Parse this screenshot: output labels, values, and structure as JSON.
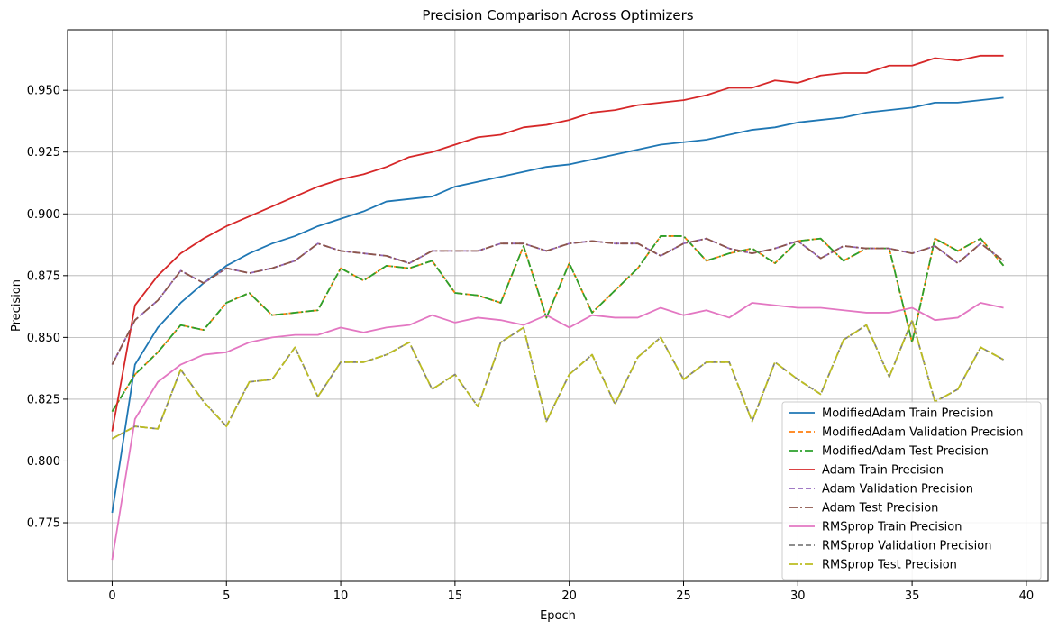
{
  "chart_data": {
    "type": "line",
    "title": "Precision Comparison Across Optimizers",
    "xlabel": "Epoch",
    "ylabel": "Precision",
    "xlim": [
      -1.95,
      40.95
    ],
    "ylim": [
      0.7513,
      0.9745
    ],
    "x_ticks": [
      0,
      5,
      10,
      15,
      20,
      25,
      30,
      35,
      40
    ],
    "x_tick_labels": [
      "0",
      "5",
      "10",
      "15",
      "20",
      "25",
      "30",
      "35",
      "40"
    ],
    "y_ticks": [
      0.775,
      0.8,
      0.825,
      0.85,
      0.875,
      0.9,
      0.925,
      0.95
    ],
    "y_tick_labels": [
      "0.775",
      "0.800",
      "0.825",
      "0.850",
      "0.875",
      "0.900",
      "0.925",
      "0.950"
    ],
    "grid": true,
    "legend_position": "bottom-right",
    "x": [
      0,
      1,
      2,
      3,
      4,
      5,
      6,
      7,
      8,
      9,
      10,
      11,
      12,
      13,
      14,
      15,
      16,
      17,
      18,
      19,
      20,
      21,
      22,
      23,
      24,
      25,
      26,
      27,
      28,
      29,
      30,
      31,
      32,
      33,
      34,
      35,
      36,
      37,
      38,
      39
    ],
    "series": [
      {
        "name": "ModifiedAdam Train Precision",
        "color": "#1f77b4",
        "dash": "solid",
        "values": [
          0.779,
          0.839,
          0.854,
          0.864,
          0.872,
          0.879,
          0.884,
          0.888,
          0.891,
          0.895,
          0.898,
          0.901,
          0.905,
          0.906,
          0.907,
          0.911,
          0.913,
          0.915,
          0.917,
          0.919,
          0.92,
          0.922,
          0.924,
          0.926,
          0.928,
          0.929,
          0.93,
          0.932,
          0.934,
          0.935,
          0.937,
          0.938,
          0.939,
          0.941,
          0.942,
          0.943,
          0.945,
          0.945,
          0.946,
          0.947
        ]
      },
      {
        "name": "ModifiedAdam Validation Precision",
        "color": "#ff7f0e",
        "dash": "dashed",
        "values": [
          0.82,
          0.835,
          0.844,
          0.855,
          0.853,
          0.864,
          0.868,
          0.859,
          0.86,
          0.861,
          0.878,
          0.873,
          0.879,
          0.878,
          0.881,
          0.868,
          0.867,
          0.864,
          0.887,
          0.858,
          0.88,
          0.86,
          0.869,
          0.878,
          0.891,
          0.891,
          0.881,
          0.884,
          0.886,
          0.88,
          0.889,
          0.89,
          0.881,
          0.886,
          0.886,
          0.848,
          0.89,
          0.885,
          0.89,
          0.879
        ]
      },
      {
        "name": "ModifiedAdam Test Precision",
        "color": "#2ca02c",
        "dash": "dashdot",
        "values": [
          0.82,
          0.835,
          0.844,
          0.855,
          0.853,
          0.864,
          0.868,
          0.859,
          0.86,
          0.861,
          0.878,
          0.873,
          0.879,
          0.878,
          0.881,
          0.868,
          0.867,
          0.864,
          0.887,
          0.858,
          0.88,
          0.86,
          0.869,
          0.878,
          0.891,
          0.891,
          0.881,
          0.884,
          0.886,
          0.88,
          0.889,
          0.89,
          0.881,
          0.886,
          0.886,
          0.848,
          0.89,
          0.885,
          0.89,
          0.879
        ]
      },
      {
        "name": "Adam Train Precision",
        "color": "#d62728",
        "dash": "solid",
        "values": [
          0.812,
          0.863,
          0.875,
          0.884,
          0.89,
          0.895,
          0.899,
          0.903,
          0.907,
          0.911,
          0.914,
          0.916,
          0.919,
          0.923,
          0.925,
          0.928,
          0.931,
          0.932,
          0.935,
          0.936,
          0.938,
          0.941,
          0.942,
          0.944,
          0.945,
          0.946,
          0.948,
          0.951,
          0.951,
          0.954,
          0.953,
          0.956,
          0.957,
          0.957,
          0.96,
          0.96,
          0.963,
          0.962,
          0.964,
          0.964
        ]
      },
      {
        "name": "Adam Validation Precision",
        "color": "#9467bd",
        "dash": "dashed",
        "values": [
          0.839,
          0.857,
          0.865,
          0.877,
          0.872,
          0.878,
          0.876,
          0.878,
          0.881,
          0.888,
          0.885,
          0.884,
          0.883,
          0.88,
          0.885,
          0.885,
          0.885,
          0.888,
          0.888,
          0.885,
          0.888,
          0.889,
          0.888,
          0.888,
          0.883,
          0.888,
          0.89,
          0.886,
          0.884,
          0.886,
          0.889,
          0.882,
          0.887,
          0.886,
          0.886,
          0.884,
          0.887,
          0.88,
          0.888,
          0.881
        ]
      },
      {
        "name": "Adam Test Precision",
        "color": "#8c564b",
        "dash": "dashdot",
        "values": [
          0.839,
          0.857,
          0.865,
          0.877,
          0.872,
          0.878,
          0.876,
          0.878,
          0.881,
          0.888,
          0.885,
          0.884,
          0.883,
          0.88,
          0.885,
          0.885,
          0.885,
          0.888,
          0.888,
          0.885,
          0.888,
          0.889,
          0.888,
          0.888,
          0.883,
          0.888,
          0.89,
          0.886,
          0.884,
          0.886,
          0.889,
          0.882,
          0.887,
          0.886,
          0.886,
          0.884,
          0.887,
          0.88,
          0.888,
          0.881
        ]
      },
      {
        "name": "RMSprop Train Precision",
        "color": "#e377c2",
        "dash": "solid",
        "values": [
          0.76,
          0.817,
          0.832,
          0.839,
          0.843,
          0.844,
          0.848,
          0.85,
          0.851,
          0.851,
          0.854,
          0.852,
          0.854,
          0.855,
          0.859,
          0.856,
          0.858,
          0.857,
          0.855,
          0.859,
          0.854,
          0.859,
          0.858,
          0.858,
          0.862,
          0.859,
          0.861,
          0.858,
          0.864,
          0.863,
          0.862,
          0.862,
          0.861,
          0.86,
          0.86,
          0.862,
          0.857,
          0.858,
          0.864,
          0.862
        ]
      },
      {
        "name": "RMSprop Validation Precision",
        "color": "#7f7f7f",
        "dash": "dashed",
        "values": [
          0.809,
          0.814,
          0.813,
          0.837,
          0.824,
          0.814,
          0.832,
          0.833,
          0.846,
          0.826,
          0.84,
          0.84,
          0.843,
          0.848,
          0.829,
          0.835,
          0.822,
          0.848,
          0.854,
          0.816,
          0.835,
          0.843,
          0.823,
          0.842,
          0.85,
          0.833,
          0.84,
          0.84,
          0.816,
          0.84,
          0.833,
          0.827,
          0.849,
          0.855,
          0.834,
          0.857,
          0.824,
          0.829,
          0.846,
          0.841
        ]
      },
      {
        "name": "RMSprop Test Precision",
        "color": "#bcbd22",
        "dash": "dashdot",
        "values": [
          0.809,
          0.814,
          0.813,
          0.837,
          0.824,
          0.814,
          0.832,
          0.833,
          0.846,
          0.826,
          0.84,
          0.84,
          0.843,
          0.848,
          0.829,
          0.835,
          0.822,
          0.848,
          0.854,
          0.816,
          0.835,
          0.843,
          0.823,
          0.842,
          0.85,
          0.833,
          0.84,
          0.84,
          0.816,
          0.84,
          0.833,
          0.827,
          0.849,
          0.855,
          0.834,
          0.857,
          0.824,
          0.829,
          0.846,
          0.841
        ]
      }
    ]
  }
}
